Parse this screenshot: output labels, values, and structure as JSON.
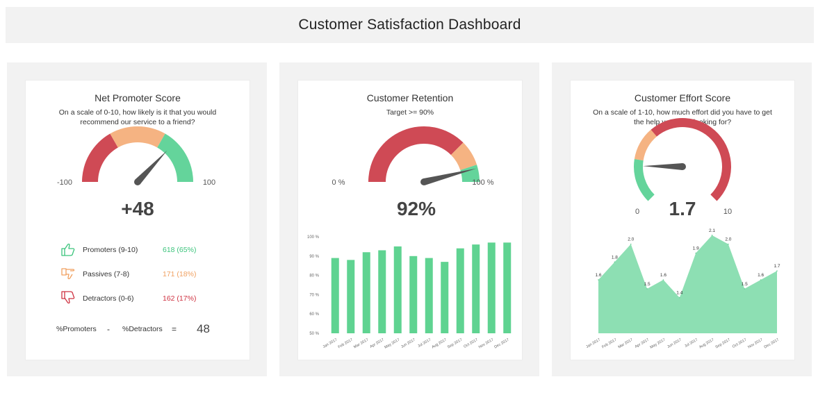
{
  "dashboard": {
    "title": "Customer Satisfaction Dashboard"
  },
  "nps": {
    "title": "Net Promoter Score",
    "question": "On a scale of 0-10, how likely is it that you would recommend our service to a friend?",
    "gauge": {
      "min_label": "-100",
      "max_label": "100",
      "value": "+48",
      "min": -100,
      "max": 100,
      "needle_value": 48
    },
    "segments": [
      {
        "name": "Detractors",
        "from": -100,
        "to": -33,
        "color": "#cf4a55"
      },
      {
        "name": "Passives",
        "from": -33,
        "to": 33,
        "color": "#f5b382"
      },
      {
        "name": "Promoters",
        "from": 33,
        "to": 100,
        "color": "#64d49b"
      }
    ],
    "rows": [
      {
        "icon": "thumbs-up-icon",
        "label": "Promoters (9-10)",
        "value": "618 (65%)",
        "color": "#3cc47c"
      },
      {
        "icon": "thumbs-sideways-icon",
        "label": "Passives (7-8)",
        "value": "171 (18%)",
        "color": "#f0a060"
      },
      {
        "icon": "thumbs-down-icon",
        "label": "Detractors (0-6)",
        "value": "162 (17%)",
        "color": "#cf3342"
      }
    ],
    "formula": {
      "left": "%Promoters",
      "minus": "-",
      "right": "%Detractors",
      "equals": "=",
      "result": "48"
    }
  },
  "retention": {
    "title": "Customer Retention",
    "target": "Target >=  90%",
    "gauge": {
      "min_label": "0 %",
      "max_label": "100 %",
      "value": "92%",
      "min": 0,
      "max": 100,
      "needle_value": 92
    },
    "segments": [
      {
        "from": 0,
        "to": 75,
        "color": "#cf4a55"
      },
      {
        "from": 75,
        "to": 90,
        "color": "#f5b382"
      },
      {
        "from": 90,
        "to": 100,
        "color": "#64d49b"
      }
    ]
  },
  "ces": {
    "title": "Customer Effort Score",
    "question": "On a scale of 1-10, how much effort did you have to get the help you were looking for?",
    "gauge": {
      "min_label": "0",
      "max_label": "10",
      "value": "1.7",
      "min": 0,
      "max": 10,
      "needle_value": 1.7
    },
    "segments": [
      {
        "from": 0,
        "to": 2,
        "color": "#64d49b"
      },
      {
        "from": 2,
        "to": 3.5,
        "color": "#f5b382"
      },
      {
        "from": 3.5,
        "to": 10,
        "color": "#cf4a55"
      }
    ]
  },
  "chart_data": [
    {
      "type": "bar",
      "title": "",
      "categories": [
        "Jan 2017",
        "Feb 2017",
        "Mar 2017",
        "Apr 2017",
        "May 2017",
        "Jun 2017",
        "Jul 2017",
        "Aug 2017",
        "Sep 2017",
        "Oct 2017",
        "Nov 2017",
        "Dec 2017"
      ],
      "values": [
        89,
        88,
        92,
        93,
        95,
        90,
        89,
        87,
        94,
        96,
        97,
        97
      ],
      "yticks": [
        "50 %",
        "60 %",
        "70 %",
        "80 %",
        "90 %",
        "100 %"
      ],
      "ylim": [
        50,
        100
      ],
      "color": "#5fd391",
      "grid": false
    },
    {
      "type": "area",
      "title": "",
      "categories": [
        "Jan 2017",
        "Feb 2017",
        "Mar 2017",
        "Apr 2017",
        "May 2017",
        "Jun 2017",
        "Jul 2017",
        "Aug 2017",
        "Sep 2017",
        "Oct 2017",
        "Nov 2017",
        "Dec 2017"
      ],
      "values": [
        1.6,
        1.8,
        2.0,
        1.5,
        1.6,
        1.4,
        1.9,
        2.1,
        2.0,
        1.5,
        1.6,
        1.7
      ],
      "labels": [
        "1.6",
        "1.8",
        "2.0",
        "1.5",
        "1.6",
        "1.4",
        "1.9",
        "2.1",
        "2.0",
        "1.5",
        "1.6",
        "1.7"
      ],
      "ylim": [
        1.0,
        2.2
      ],
      "color": "#8ddfb3",
      "grid": false
    }
  ]
}
